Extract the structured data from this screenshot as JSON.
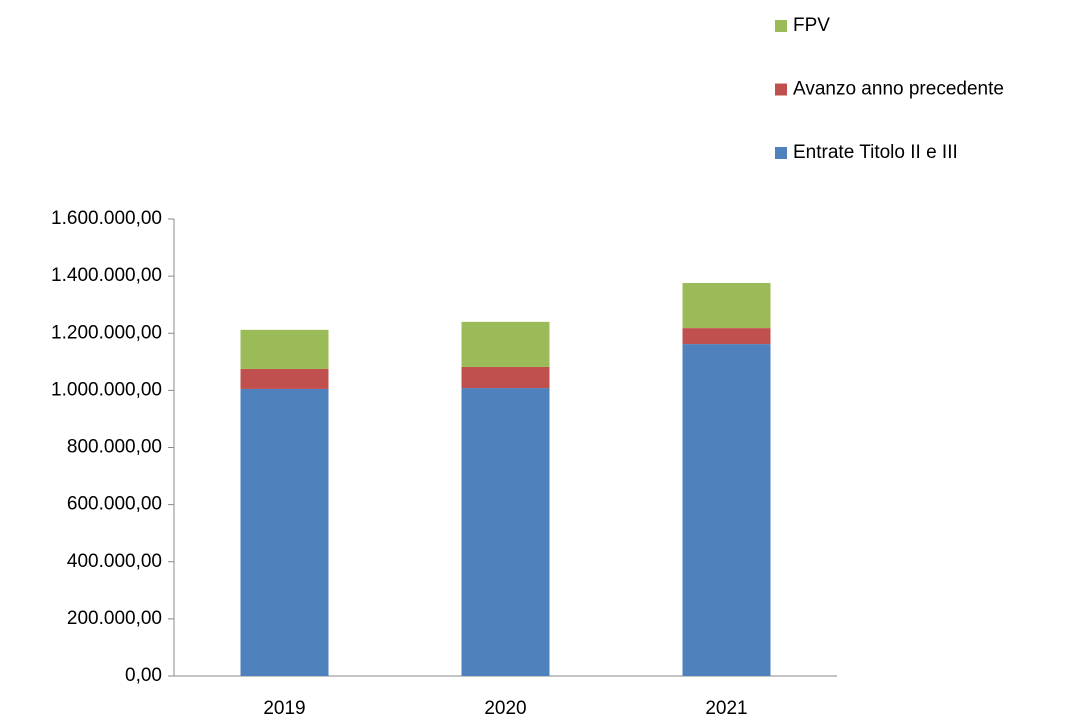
{
  "chart_data": {
    "type": "bar",
    "stacked": true,
    "categories": [
      "2019",
      "2020",
      "2021"
    ],
    "series": [
      {
        "name": "Entrate Titolo II e III",
        "color": "#4f81bd",
        "values": [
          1005000,
          1008000,
          1162000
        ]
      },
      {
        "name": "Avanzo anno precedente",
        "color": "#c0504d",
        "values": [
          70000,
          74000,
          56000
        ]
      },
      {
        "name": "FPV",
        "color": "#9bbb59",
        "values": [
          137000,
          158000,
          158000
        ]
      }
    ],
    "ylim": [
      0,
      1600000
    ],
    "yticks": [
      {
        "value": 0,
        "label": "0,00"
      },
      {
        "value": 200000,
        "label": "200.000,00"
      },
      {
        "value": 400000,
        "label": "400.000,00"
      },
      {
        "value": 600000,
        "label": "600.000,00"
      },
      {
        "value": 800000,
        "label": "800.000,00"
      },
      {
        "value": 1000000,
        "label": "1.000.000,00"
      },
      {
        "value": 1200000,
        "label": "1.200.000,00"
      },
      {
        "value": 1400000,
        "label": "1.400.000,00"
      },
      {
        "value": 1600000,
        "label": "1.600.000,00"
      }
    ],
    "legend": "top-right"
  }
}
